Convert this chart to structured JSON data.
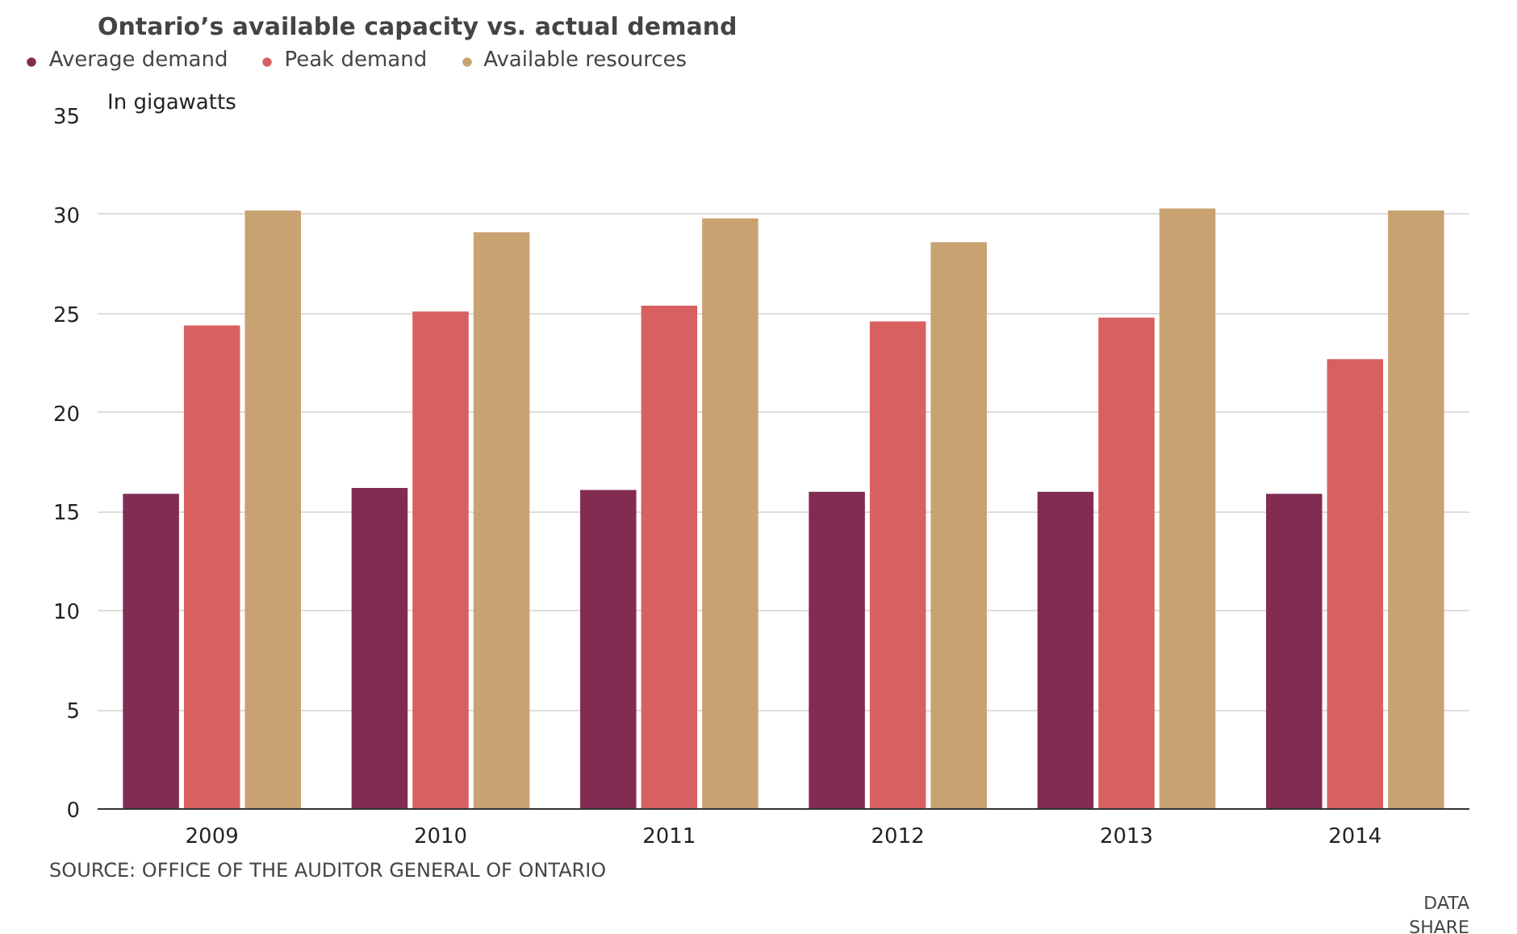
{
  "chart_data": {
    "type": "bar",
    "title": "Ontario’s available capacity vs. actual demand",
    "ylabel": "In gigawatts",
    "categories": [
      "2009",
      "2010",
      "2011",
      "2012",
      "2013",
      "2014"
    ],
    "series": [
      {
        "name": "Average demand",
        "color": "#822c52",
        "values": [
          15.9,
          16.2,
          16.1,
          16.0,
          16.0,
          15.9
        ]
      },
      {
        "name": "Peak demand",
        "color": "#d96060",
        "values": [
          24.4,
          25.1,
          25.4,
          24.6,
          24.8,
          22.7
        ]
      },
      {
        "name": "Available resources",
        "color": "#c9a272",
        "values": [
          30.2,
          29.1,
          29.8,
          28.6,
          30.3,
          30.2
        ]
      }
    ],
    "ylim": [
      0,
      35
    ],
    "yticks": [
      0,
      5,
      10,
      15,
      20,
      25,
      30,
      35
    ],
    "grid": "y",
    "legend": "top left",
    "annotations": [
      "SOURCE: OFFICE OF THE AUDITOR GENERAL OF ONTARIO",
      "DATA",
      "SHARE"
    ]
  }
}
